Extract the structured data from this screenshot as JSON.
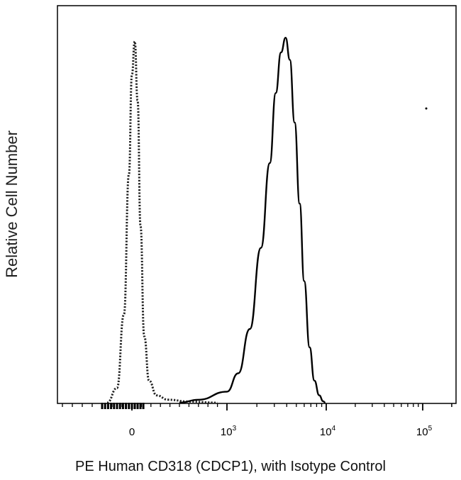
{
  "chart_data": {
    "type": "line",
    "title": "",
    "xlabel": "PE Human CD318 (CDCP1), with Isotype Control",
    "ylabel": "Relative Cell Number",
    "x_scale": "biexponential",
    "xlim": [
      -1000,
      250000
    ],
    "ylim": [
      0,
      1.0
    ],
    "grid": false,
    "legend": "none",
    "x_ticks": [
      {
        "value": 0,
        "base": "0",
        "exp": ""
      },
      {
        "value": 1000,
        "base": "10",
        "exp": "3"
      },
      {
        "value": 10000,
        "base": "10",
        "exp": "4"
      },
      {
        "value": 100000,
        "base": "10",
        "exp": "5"
      }
    ],
    "series": [
      {
        "style": "dotted",
        "color": "#222222",
        "x": [
          -250,
          -150,
          -80,
          -30,
          0,
          30,
          60,
          90,
          130,
          180,
          260,
          380,
          600,
          900
        ],
        "y": [
          0.0,
          0.04,
          0.24,
          0.62,
          0.89,
          0.98,
          0.82,
          0.48,
          0.18,
          0.06,
          0.02,
          0.008,
          0.003,
          0.0
        ]
      },
      {
        "style": "solid",
        "color": "#000000",
        "x": [
          500,
          700,
          1000,
          1300,
          1700,
          2200,
          2700,
          3100,
          3500,
          3900,
          4300,
          4800,
          5400,
          6000,
          6800,
          7600,
          8500,
          9300,
          9800
        ],
        "y": [
          0.0,
          0.008,
          0.03,
          0.08,
          0.2,
          0.42,
          0.65,
          0.84,
          0.95,
          0.99,
          0.93,
          0.76,
          0.54,
          0.33,
          0.15,
          0.06,
          0.02,
          0.004,
          0.0
        ]
      }
    ]
  }
}
